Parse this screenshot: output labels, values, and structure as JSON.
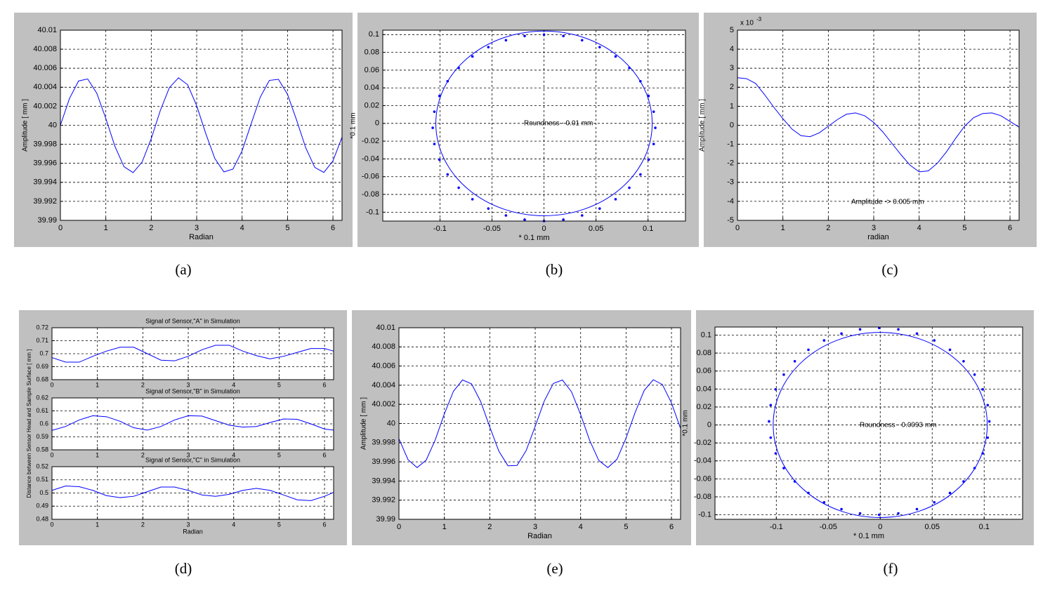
{
  "chart_data": [
    {
      "type": "line",
      "caption": "(a)",
      "xlabel": "Radian",
      "ylabel": "Amplitude [ mm ]",
      "color": "#0000ff",
      "xlim": [
        0,
        6.2
      ],
      "xticks": [
        0,
        1,
        2,
        3,
        4,
        5,
        6
      ],
      "ylim": [
        39.99,
        40.01
      ],
      "yticks": [
        39.99,
        39.992,
        39.994,
        39.996,
        39.998,
        40,
        40.002,
        40.004,
        40.006,
        40.008,
        40.01
      ],
      "x": [
        0,
        0.2,
        0.4,
        0.6,
        0.8,
        1,
        1.2,
        1.4,
        1.6,
        1.8,
        2,
        2.2,
        2.4,
        2.6,
        2.8,
        3,
        3.2,
        3.4,
        3.6,
        3.8,
        4,
        4.2,
        4.4,
        4.6,
        4.8,
        5,
        5.2,
        5.4,
        5.6,
        5.8,
        6,
        6.2
      ],
      "y": [
        40,
        40.00282,
        40.00466,
        40.00487,
        40.00338,
        40.00071,
        39.99779,
        39.99564,
        39.99502,
        39.99614,
        39.9986,
        40.00156,
        40.00397,
        40.00499,
        40.00427,
        40.00206,
        39.99913,
        39.9965,
        39.99509,
        39.9954,
        39.99732,
        40.00017,
        40.00296,
        40.00472,
        40.00483,
        40.00325,
        40.00054,
        39.99764,
        39.99557,
        39.99504,
        39.99625,
        39.99876
      ]
    },
    {
      "type": "roundness",
      "caption": "(b)",
      "xlabel": "* 0.1 mm",
      "ylabel": "*0.1 mm",
      "annotation": "Roundness - 0.01 mm",
      "color": "#0000ff",
      "xlim": [
        -0.155,
        0.136
      ],
      "xticks": [
        -0.1,
        -0.05,
        0,
        0.05,
        0.1
      ],
      "ylim": [
        -0.11,
        0.105
      ],
      "yticks": [
        -0.1,
        -0.08,
        -0.06,
        -0.04,
        -0.02,
        0,
        0.02,
        0.04,
        0.06,
        0.08,
        0.1
      ],
      "circle": {
        "center_x": 0,
        "center_y": 0,
        "radius": 0.104
      },
      "points": {
        "x": [
          0.107,
          0.1054,
          0.1005,
          0.0927,
          0.082,
          0.0688,
          0.0535,
          0.0366,
          0.0186,
          0,
          -0.0186,
          -0.0366,
          -0.0535,
          -0.0688,
          -0.082,
          -0.0927,
          -0.1005,
          -0.1054,
          -0.107,
          -0.1054,
          -0.1005,
          -0.0927,
          -0.082,
          -0.0688,
          -0.0535,
          -0.0366,
          -0.0186,
          0,
          0.0186,
          0.0366,
          0.0535,
          0.0688,
          0.082,
          0.0927,
          0.1005,
          0.1054
        ],
        "y": [
          -0.005,
          0.0132,
          0.0309,
          0.0475,
          0.0625,
          0.0754,
          0.0859,
          0.0937,
          0.0984,
          0.1,
          0.0984,
          0.0937,
          0.0859,
          0.0754,
          0.0625,
          0.0475,
          0.0309,
          0.0132,
          -0.005,
          -0.0232,
          -0.0409,
          -0.0575,
          -0.0725,
          -0.0854,
          -0.0959,
          -0.1037,
          -0.1084,
          -0.11,
          -0.1084,
          -0.1037,
          -0.0959,
          -0.0854,
          -0.0725,
          -0.0575,
          -0.0409,
          -0.0232
        ]
      }
    },
    {
      "type": "line",
      "caption": "(c)",
      "xlabel": "radian",
      "ylabel": "Amplitude [ mm ]",
      "annotation": "Amplitude -> 0.005 mm",
      "color": "#0000ff",
      "y_multiplier": {
        "base": "x 10",
        "exponent": "-3"
      },
      "xlim": [
        0,
        6.2
      ],
      "xticks": [
        0,
        1,
        2,
        3,
        4,
        5,
        6
      ],
      "ylim": [
        -5,
        5
      ],
      "yticks": [
        -5,
        -4,
        -3,
        -2,
        -1,
        0,
        1,
        2,
        3,
        4,
        5
      ],
      "x": [
        0,
        0.2,
        0.4,
        0.6,
        0.8,
        1,
        1.2,
        1.4,
        1.6,
        1.8,
        2,
        2.2,
        2.4,
        2.6,
        2.8,
        3,
        3.2,
        3.4,
        3.6,
        3.8,
        4,
        4.2,
        4.4,
        4.6,
        4.8,
        5,
        5.2,
        5.4,
        5.6,
        5.8,
        6,
        6.2
      ],
      "y": [
        2.5,
        2.45,
        2.2,
        1.6,
        0.95,
        0.35,
        -0.2,
        -0.55,
        -0.6,
        -0.4,
        -0.05,
        0.3,
        0.58,
        0.65,
        0.5,
        0.15,
        -0.35,
        -0.95,
        -1.55,
        -2.1,
        -2.45,
        -2.4,
        -2.0,
        -1.4,
        -0.7,
        -0.05,
        0.4,
        0.62,
        0.65,
        0.5,
        0.2,
        -0.1
      ]
    },
    {
      "type": "stacked_lines",
      "caption": "(d)",
      "xlabel": "Radian",
      "ylabel": "Distance between Sensor Head and Sample Surface [ mm ]",
      "color": "#0000ff",
      "xlim": [
        0,
        6.2
      ],
      "xticks": [
        0,
        1,
        2,
        3,
        4,
        5,
        6
      ],
      "x": [
        0,
        0.3,
        0.6,
        0.9,
        1.2,
        1.5,
        1.8,
        2.1,
        2.4,
        2.7,
        3,
        3.3,
        3.6,
        3.9,
        4.2,
        4.5,
        4.8,
        5.1,
        5.4,
        5.7,
        6,
        6.2
      ],
      "subplots": [
        {
          "title": "Signal of Sensor,\"A\" in Simulation",
          "ylim": [
            0.68,
            0.72
          ],
          "yticks": [
            0.68,
            0.69,
            0.7,
            0.71,
            0.72
          ],
          "y": [
            0.697,
            0.6935,
            0.6935,
            0.698,
            0.702,
            0.705,
            0.705,
            0.7,
            0.695,
            0.6945,
            0.698,
            0.703,
            0.7065,
            0.7065,
            0.702,
            0.6985,
            0.696,
            0.698,
            0.701,
            0.704,
            0.704,
            0.702
          ]
        },
        {
          "title": "Signal of Sensor,\"B\" in Simulation",
          "ylim": [
            0.58,
            0.62
          ],
          "yticks": [
            0.58,
            0.59,
            0.6,
            0.61,
            0.62
          ],
          "y": [
            0.595,
            0.598,
            0.603,
            0.6063,
            0.6055,
            0.602,
            0.597,
            0.5952,
            0.598,
            0.603,
            0.6063,
            0.606,
            0.6025,
            0.599,
            0.5975,
            0.598,
            0.601,
            0.6038,
            0.6035,
            0.6,
            0.596,
            0.5952
          ]
        },
        {
          "title": "Signal of Sensor,\"C\" in Simulation",
          "ylim": [
            0.48,
            0.52
          ],
          "yticks": [
            0.48,
            0.49,
            0.5,
            0.51,
            0.52
          ],
          "y": [
            0.502,
            0.5053,
            0.5048,
            0.502,
            0.498,
            0.4965,
            0.4975,
            0.501,
            0.5045,
            0.5045,
            0.502,
            0.4985,
            0.4975,
            0.499,
            0.502,
            0.5035,
            0.502,
            0.4985,
            0.4948,
            0.4942,
            0.4975,
            0.5005
          ]
        }
      ]
    },
    {
      "type": "line",
      "caption": "(e)",
      "xlabel": "Radian",
      "ylabel": "Amplitude [ mm ]",
      "color": "#0000ff",
      "xlim": [
        0,
        6.2
      ],
      "xticks": [
        0,
        1,
        2,
        3,
        4,
        5,
        6
      ],
      "ylim": [
        39.99,
        40.01
      ],
      "yticks": [
        39.99,
        39.992,
        39.994,
        39.996,
        39.998,
        40,
        40.002,
        40.004,
        40.006,
        40.008,
        40.01
      ],
      "x": [
        0,
        0.2,
        0.4,
        0.6,
        0.8,
        1,
        1.2,
        1.4,
        1.6,
        1.8,
        2,
        2.2,
        2.4,
        2.6,
        2.8,
        3,
        3.2,
        3.4,
        3.6,
        3.8,
        4,
        4.2,
        4.4,
        4.6,
        4.8,
        5,
        5.2,
        5.4,
        5.6,
        5.8,
        6,
        6.2
      ],
      "y": [
        39.99841,
        39.99623,
        39.9954,
        39.99618,
        39.9983,
        40.00101,
        40.00337,
        40.00455,
        40.00414,
        40.00229,
        39.99964,
        39.99711,
        39.99559,
        39.99562,
        39.99717,
        39.99971,
        40.00236,
        40.00418,
        40.00454,
        40.00331,
        40.00093,
        39.99822,
        39.99614,
        39.9954,
        39.99627,
        39.99848,
        40.00116,
        40.00346,
        40.00457,
        40.00407,
        40.00215,
        39.99948
      ]
    },
    {
      "type": "roundness",
      "caption": "(f)",
      "xlabel": "* 0.1 mm",
      "ylabel": "*0.1 mm",
      "annotation": "Roundness - 0.0093 mm",
      "color": "#0000ff",
      "xlim": [
        -0.159,
        0.137
      ],
      "xticks": [
        -0.1,
        -0.05,
        0,
        0.05,
        0.1
      ],
      "ylim": [
        -0.105,
        0.109
      ],
      "yticks": [
        -0.1,
        -0.08,
        -0.06,
        -0.04,
        -0.02,
        0,
        0.02,
        0.04,
        0.06,
        0.08,
        0.1
      ],
      "circle": {
        "center_x": 0,
        "center_y": 0,
        "radius": 0.103
      },
      "points": {
        "x": [
          0.105,
          0.1034,
          0.0986,
          0.0908,
          0.0802,
          0.0671,
          0.052,
          0.0353,
          0.0174,
          -0.001,
          -0.0194,
          -0.0373,
          -0.054,
          -0.0691,
          -0.0822,
          -0.0928,
          -0.1006,
          -0.1054,
          -0.107,
          -0.1054,
          -0.1006,
          -0.0928,
          -0.0822,
          -0.0691,
          -0.054,
          -0.0373,
          -0.0194,
          -0.001,
          0.0174,
          0.0353,
          0.052,
          0.0671,
          0.0802,
          0.0908,
          0.0986,
          0.1034
        ],
        "y": [
          0.004,
          0.0221,
          0.0396,
          0.056,
          0.0709,
          0.0837,
          0.0941,
          0.1017,
          0.1064,
          0.108,
          0.1064,
          0.1017,
          0.0941,
          0.0837,
          0.0709,
          0.056,
          0.0396,
          0.0221,
          0.004,
          -0.0141,
          -0.0316,
          -0.048,
          -0.0629,
          -0.0757,
          -0.0861,
          -0.0937,
          -0.0984,
          -0.1,
          -0.0984,
          -0.0937,
          -0.0861,
          -0.0757,
          -0.0629,
          -0.048,
          -0.0316,
          -0.0141
        ]
      }
    }
  ]
}
